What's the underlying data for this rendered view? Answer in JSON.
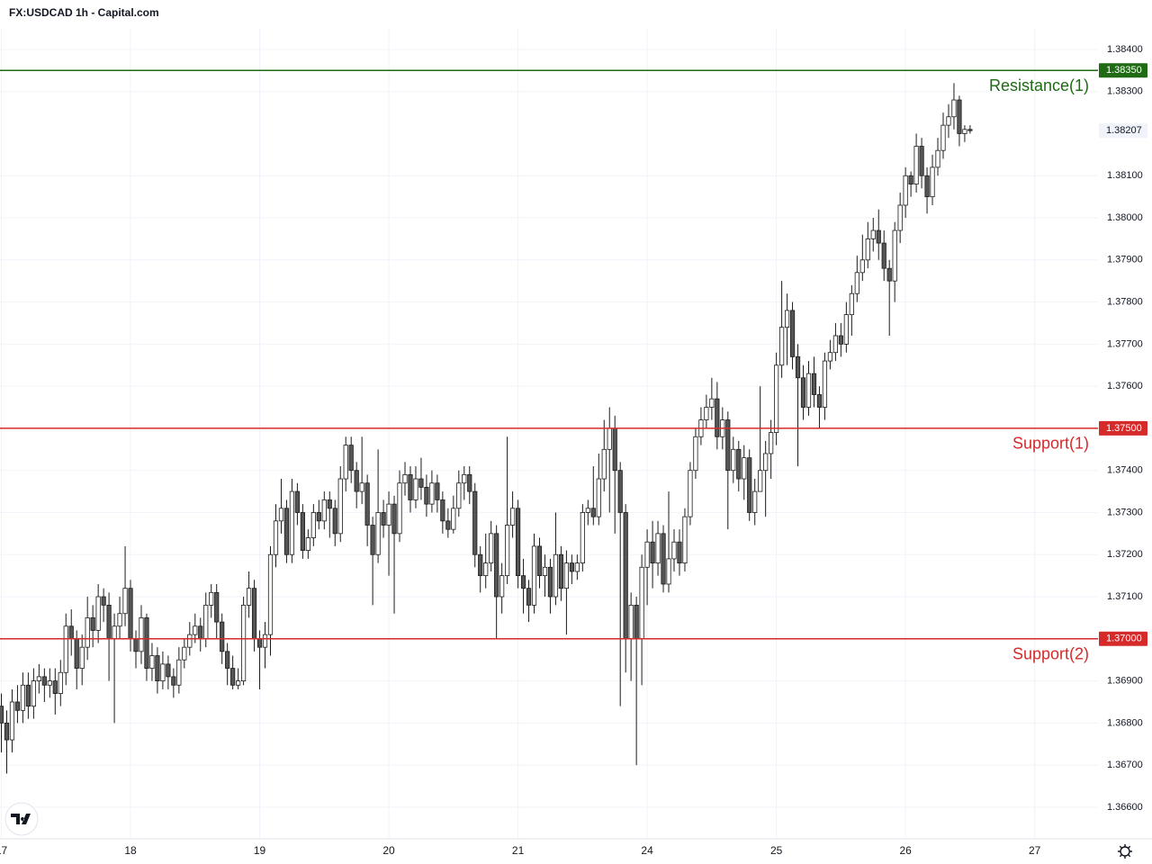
{
  "chart_data": {
    "type": "candlestick",
    "title": "FX:USDCAD 1h - Capital.com",
    "categories": [
      "17",
      null,
      null,
      null,
      null,
      null,
      null,
      null,
      null,
      null,
      null,
      null,
      null,
      null,
      null,
      null,
      null,
      null,
      null,
      null,
      null,
      null,
      null,
      null,
      "18",
      null,
      null,
      null,
      null,
      null,
      null,
      null,
      null,
      null,
      null,
      null,
      null,
      null,
      null,
      null,
      null,
      null,
      null,
      null,
      null,
      null,
      null,
      null,
      "19",
      null,
      null,
      null,
      null,
      null,
      null,
      null,
      null,
      null,
      null,
      null,
      null,
      null,
      null,
      null,
      null,
      null,
      null,
      null,
      null,
      null,
      null,
      null,
      "20",
      null,
      null,
      null,
      null,
      null,
      null,
      null,
      null,
      null,
      null,
      null,
      null,
      null,
      null,
      null,
      null,
      null,
      null,
      null,
      null,
      null,
      null,
      null,
      "21",
      null,
      null,
      null,
      null,
      null,
      null,
      null,
      null,
      null,
      null,
      null,
      null,
      null,
      null,
      null,
      null,
      null,
      null,
      null,
      null,
      null,
      null,
      null,
      "24",
      null,
      null,
      null,
      null,
      null,
      null,
      null,
      null,
      null,
      null,
      null,
      null,
      null,
      null,
      null,
      null,
      null,
      null,
      null,
      null,
      null,
      null,
      null,
      "25",
      null,
      null,
      null,
      null,
      null,
      null,
      null,
      null,
      null,
      null,
      null,
      null,
      null,
      null,
      null,
      null,
      null,
      null,
      null,
      null,
      null,
      null,
      null,
      "26",
      null,
      null,
      null,
      null,
      null,
      null,
      null,
      null,
      null,
      null,
      null,
      null,
      null,
      null,
      null,
      null,
      null,
      null,
      null,
      null,
      null,
      null,
      null,
      "27"
    ],
    "open": [
      1.3684,
      1.368,
      1.3676,
      1.3685,
      1.3683,
      1.3689,
      1.3684,
      1.369,
      1.3691,
      1.3689,
      1.369,
      1.3687,
      1.3692,
      1.3703,
      1.37,
      1.3693,
      1.3698,
      1.3705,
      1.3702,
      1.371,
      1.3708,
      1.37,
      1.3703,
      1.3706,
      1.3712,
      1.37,
      1.3697,
      1.3705,
      1.3693,
      1.3696,
      1.369,
      1.3694,
      1.3691,
      1.3689,
      1.3695,
      1.3698,
      1.3701,
      1.3703,
      1.37,
      1.3708,
      1.3711,
      1.3704,
      1.3697,
      1.3693,
      1.3689,
      1.369,
      1.3708,
      1.3712,
      1.37,
      1.3698,
      1.3701,
      1.372,
      1.3728,
      1.3731,
      1.372,
      1.3735,
      1.373,
      1.3721,
      1.3724,
      1.373,
      1.3728,
      1.3733,
      1.3731,
      1.3725,
      1.3738,
      1.3746,
      1.374,
      1.3735,
      1.3737,
      1.3727,
      1.372,
      1.373,
      1.3727,
      1.3732,
      1.3725,
      1.3737,
      1.3739,
      1.3733,
      1.3738,
      1.3736,
      1.3732,
      1.3737,
      1.3733,
      1.3728,
      1.3726,
      1.3731,
      1.3737,
      1.3739,
      1.3735,
      1.372,
      1.3715,
      1.3718,
      1.3725,
      1.371,
      1.3715,
      1.3727,
      1.3731,
      1.3715,
      1.3712,
      1.3708,
      1.3722,
      1.3715,
      1.3717,
      1.371,
      1.372,
      1.3712,
      1.3718,
      1.3716,
      1.3718,
      1.373,
      1.3731,
      1.3729,
      1.3738,
      1.3745,
      1.375,
      1.374,
      1.373,
      1.37,
      1.3708,
      1.37,
      1.3717,
      1.3723,
      1.3718,
      1.3725,
      1.3713,
      1.3719,
      1.3723,
      1.3718,
      1.3729,
      1.374,
      1.3748,
      1.3752,
      1.3755,
      1.3757,
      1.3748,
      1.3752,
      1.374,
      1.3745,
      1.3738,
      1.3743,
      1.373,
      1.3735,
      1.374,
      1.3744,
      1.3749,
      1.3765,
      1.3774,
      1.3778,
      1.3767,
      1.3762,
      1.3755,
      1.3763,
      1.3758,
      1.3755,
      1.3766,
      1.3768,
      1.3772,
      1.377,
      1.3777,
      1.3782,
      1.3787,
      1.379,
      1.3795,
      1.3797,
      1.3794,
      1.3788,
      1.3785,
      1.3797,
      1.3803,
      1.381,
      1.3808,
      1.3817,
      1.381,
      1.3805,
      1.3812,
      1.3816,
      1.3822,
      1.3824,
      1.3828,
      1.382,
      1.3821,
      null,
      null,
      null,
      null,
      null,
      null,
      null,
      null,
      null,
      null,
      null,
      null
    ],
    "high": [
      1.3687,
      1.3683,
      1.3688,
      1.3689,
      1.3692,
      1.3692,
      1.3693,
      1.3694,
      1.3693,
      1.3693,
      1.3693,
      1.3695,
      1.3706,
      1.3707,
      1.3702,
      1.3701,
      1.371,
      1.3708,
      1.3713,
      1.3712,
      1.3711,
      1.3706,
      1.371,
      1.3722,
      1.3714,
      1.3702,
      1.3708,
      1.3706,
      1.3699,
      1.3698,
      1.3697,
      1.3696,
      1.3693,
      1.3698,
      1.37,
      1.3704,
      1.3706,
      1.3705,
      1.3711,
      1.3713,
      1.3713,
      1.3706,
      1.3699,
      1.3696,
      1.3693,
      1.371,
      1.3716,
      1.3714,
      1.3702,
      1.3704,
      1.3722,
      1.3732,
      1.3738,
      1.3733,
      1.3738,
      1.3737,
      1.3732,
      1.3726,
      1.3732,
      1.3733,
      1.3735,
      1.3735,
      1.3733,
      1.3741,
      1.3748,
      1.3748,
      1.3742,
      1.3748,
      1.3739,
      1.3729,
      1.3745,
      1.3733,
      1.3735,
      1.3734,
      1.374,
      1.3742,
      1.3741,
      1.3741,
      1.3743,
      1.3739,
      1.374,
      1.3739,
      1.3735,
      1.3731,
      1.3734,
      1.374,
      1.3741,
      1.3741,
      1.3737,
      1.3722,
      1.3725,
      1.3728,
      1.3727,
      1.3718,
      1.3748,
      1.3735,
      1.3733,
      1.3719,
      1.3714,
      1.3725,
      1.3724,
      1.372,
      1.3719,
      1.373,
      1.3722,
      1.3721,
      1.372,
      1.372,
      1.3732,
      1.3733,
      1.3741,
      1.3744,
      1.3752,
      1.3755,
      1.3753,
      1.3742,
      1.3732,
      1.3711,
      1.371,
      1.372,
      1.3726,
      1.3728,
      1.3728,
      1.3727,
      1.3735,
      1.3726,
      1.3726,
      1.3731,
      1.3742,
      1.375,
      1.3755,
      1.3758,
      1.3762,
      1.3761,
      1.3755,
      1.3754,
      1.3748,
      1.3747,
      1.3746,
      1.3745,
      1.3738,
      1.376,
      1.3747,
      1.3752,
      1.3768,
      1.3785,
      1.3782,
      1.378,
      1.377,
      1.3765,
      1.3766,
      1.3767,
      1.376,
      1.3768,
      1.3771,
      1.3775,
      1.3775,
      1.378,
      1.3784,
      1.3791,
      1.3796,
      1.3799,
      1.38,
      1.3802,
      1.3797,
      1.379,
      1.3799,
      1.3806,
      1.3812,
      1.3811,
      1.382,
      1.3819,
      1.3812,
      1.3815,
      1.3819,
      1.3825,
      1.3827,
      1.3832,
      1.3829,
      1.3822,
      1.3822,
      null,
      null,
      null,
      null,
      null,
      null,
      null,
      null,
      null,
      null,
      null,
      null
    ],
    "low": [
      1.3673,
      1.3668,
      1.3673,
      1.368,
      1.368,
      1.3681,
      1.3681,
      1.3687,
      1.3685,
      1.3686,
      1.3682,
      1.3684,
      1.3689,
      1.3696,
      1.3688,
      1.3689,
      1.3695,
      1.3698,
      1.3699,
      1.3704,
      1.369,
      1.368,
      1.37,
      1.3703,
      1.3697,
      1.3693,
      1.3694,
      1.369,
      1.369,
      1.3687,
      1.3688,
      1.3688,
      1.3686,
      1.3687,
      1.3693,
      1.3696,
      1.3699,
      1.3697,
      1.3698,
      1.3705,
      1.37,
      1.3694,
      1.3689,
      1.3688,
      1.3688,
      1.3689,
      1.3705,
      1.3697,
      1.3688,
      1.3693,
      1.3696,
      1.3717,
      1.3725,
      1.3718,
      1.3718,
      1.3727,
      1.3719,
      1.3719,
      1.3722,
      1.3726,
      1.3726,
      1.3724,
      1.3722,
      1.3723,
      1.3735,
      1.3737,
      1.3731,
      1.3732,
      1.3722,
      1.3708,
      1.3718,
      1.3724,
      1.3715,
      1.3706,
      1.3723,
      1.3734,
      1.373,
      1.3731,
      1.3733,
      1.3729,
      1.373,
      1.373,
      1.3725,
      1.3724,
      1.3725,
      1.3729,
      1.3733,
      1.3732,
      1.3717,
      1.3711,
      1.3712,
      1.3716,
      1.37,
      1.3706,
      1.3713,
      1.3724,
      1.3712,
      1.3706,
      1.3704,
      1.3706,
      1.3712,
      1.371,
      1.3706,
      1.3708,
      1.3709,
      1.3701,
      1.3713,
      1.3714,
      1.3716,
      1.3727,
      1.3727,
      1.3727,
      1.3735,
      1.373,
      1.3725,
      1.3684,
      1.3692,
      1.369,
      1.367,
      1.3689,
      1.3708,
      1.3712,
      1.3715,
      1.3711,
      1.3711,
      1.3716,
      1.3715,
      1.3716,
      1.3727,
      1.3738,
      1.3746,
      1.375,
      1.3752,
      1.3745,
      1.3745,
      1.3726,
      1.3737,
      1.3735,
      1.3733,
      1.3728,
      1.3727,
      1.3736,
      1.3729,
      1.3738,
      1.3746,
      1.3762,
      1.3765,
      1.3764,
      1.3741,
      1.3752,
      1.3753,
      1.3755,
      1.375,
      1.3752,
      1.3764,
      1.3766,
      1.3767,
      1.3768,
      1.3772,
      1.378,
      1.3785,
      1.3788,
      1.3792,
      1.379,
      1.3785,
      1.3772,
      1.378,
      1.3794,
      1.38,
      1.3805,
      1.3806,
      1.3807,
      1.3801,
      1.3803,
      1.381,
      1.3814,
      1.3819,
      1.3821,
      1.3817,
      1.3818,
      1.382,
      null,
      null,
      null,
      null,
      null,
      null,
      null,
      null,
      null,
      null,
      null,
      null
    ],
    "close": [
      1.368,
      1.3676,
      1.3685,
      1.3683,
      1.3689,
      1.3684,
      1.369,
      1.3691,
      1.3689,
      1.369,
      1.3687,
      1.3692,
      1.3703,
      1.37,
      1.3693,
      1.3698,
      1.3705,
      1.3702,
      1.371,
      1.3708,
      1.37,
      1.3703,
      1.3706,
      1.3712,
      1.37,
      1.3697,
      1.3705,
      1.3693,
      1.3696,
      1.369,
      1.3694,
      1.3691,
      1.3689,
      1.3695,
      1.3698,
      1.3701,
      1.3703,
      1.37,
      1.3708,
      1.3711,
      1.3704,
      1.3697,
      1.3693,
      1.3689,
      1.369,
      1.3708,
      1.3712,
      1.37,
      1.3698,
      1.3701,
      1.372,
      1.3728,
      1.3731,
      1.372,
      1.3735,
      1.373,
      1.3721,
      1.3724,
      1.373,
      1.3728,
      1.3733,
      1.3731,
      1.3725,
      1.3738,
      1.3746,
      1.374,
      1.3735,
      1.3737,
      1.3727,
      1.372,
      1.373,
      1.3727,
      1.3732,
      1.3725,
      1.3737,
      1.3739,
      1.3733,
      1.3738,
      1.3736,
      1.3732,
      1.3737,
      1.3733,
      1.3728,
      1.3726,
      1.3731,
      1.3737,
      1.3739,
      1.3735,
      1.372,
      1.3715,
      1.3718,
      1.3725,
      1.371,
      1.3715,
      1.3727,
      1.3731,
      1.3715,
      1.3712,
      1.3708,
      1.3722,
      1.3715,
      1.3717,
      1.371,
      1.372,
      1.3712,
      1.3718,
      1.3716,
      1.3718,
      1.373,
      1.3731,
      1.3729,
      1.3738,
      1.3745,
      1.375,
      1.374,
      1.373,
      1.37,
      1.3708,
      1.37,
      1.3717,
      1.3723,
      1.3718,
      1.3725,
      1.3713,
      1.3719,
      1.3723,
      1.3718,
      1.3729,
      1.374,
      1.3748,
      1.3752,
      1.3755,
      1.3757,
      1.3748,
      1.3752,
      1.374,
      1.3745,
      1.3738,
      1.3743,
      1.373,
      1.3735,
      1.374,
      1.3744,
      1.3749,
      1.3765,
      1.3774,
      1.3778,
      1.3767,
      1.3762,
      1.3755,
      1.3763,
      1.3758,
      1.3755,
      1.3766,
      1.3768,
      1.3772,
      1.377,
      1.3777,
      1.3782,
      1.3787,
      1.379,
      1.3795,
      1.3797,
      1.3794,
      1.3788,
      1.3785,
      1.3797,
      1.3803,
      1.381,
      1.3808,
      1.3817,
      1.381,
      1.3805,
      1.3812,
      1.3816,
      1.3822,
      1.3824,
      1.3828,
      1.382,
      1.3821,
      1.38207,
      null,
      null,
      null,
      null,
      null,
      null,
      null,
      null,
      null,
      null,
      null,
      null
    ],
    "up_color": "#ffffff",
    "down_color": "#555555",
    "wick_color": "#1a1a1a",
    "ylim": [
      1.36525,
      1.38449
    ],
    "yticks": [
      {
        "value": 1.384,
        "label": "1.38400"
      },
      {
        "value": 1.383,
        "label": "1.38300"
      },
      {
        "value": 1.381,
        "label": "1.38100"
      },
      {
        "value": 1.38,
        "label": "1.38000"
      },
      {
        "value": 1.379,
        "label": "1.37900"
      },
      {
        "value": 1.378,
        "label": "1.37800"
      },
      {
        "value": 1.377,
        "label": "1.37700"
      },
      {
        "value": 1.376,
        "label": "1.37600"
      },
      {
        "value": 1.374,
        "label": "1.37400"
      },
      {
        "value": 1.373,
        "label": "1.37300"
      },
      {
        "value": 1.372,
        "label": "1.37200"
      },
      {
        "value": 1.371,
        "label": "1.37100"
      },
      {
        "value": 1.369,
        "label": "1.36900"
      },
      {
        "value": 1.368,
        "label": "1.36800"
      },
      {
        "value": 1.367,
        "label": "1.36700"
      },
      {
        "value": 1.366,
        "label": "1.36600"
      }
    ],
    "grid": true,
    "levels": [
      {
        "name": "Resistance(1)",
        "value": 1.3835,
        "label": "1.38350",
        "color": "#1e6b14"
      },
      {
        "name": "Support(1)",
        "value": 1.375,
        "label": "1.37500",
        "color": "#d62a2a"
      },
      {
        "name": "Support(2)",
        "value": 1.37,
        "label": "1.37000",
        "color": "#d62a2a"
      }
    ]
  }
}
